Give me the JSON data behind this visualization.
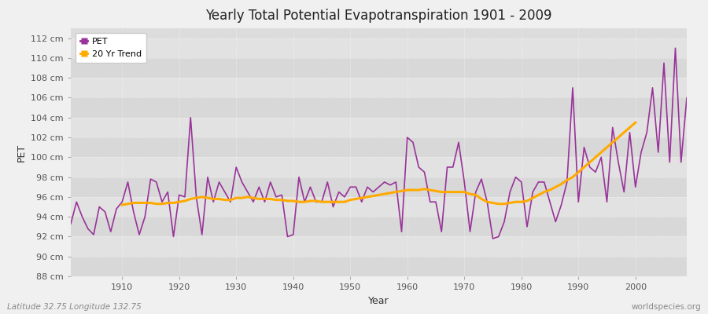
{
  "title": "Yearly Total Potential Evapotranspiration 1901 - 2009",
  "xlabel": "Year",
  "ylabel": "PET",
  "subtitle_left": "Latitude 32.75 Longitude 132.75",
  "subtitle_right": "worldspecies.org",
  "pet_color": "#993399",
  "trend_color": "#ffaa00",
  "background_color": "#f0f0f0",
  "plot_bg_color": "#e8e8e8",
  "band_colors": [
    "#e0e0e0",
    "#d8d8d8"
  ],
  "ylim": [
    88,
    113
  ],
  "xlim": [
    1901,
    2009
  ],
  "yticks": [
    88,
    90,
    92,
    94,
    96,
    98,
    100,
    102,
    104,
    106,
    108,
    110,
    112
  ],
  "xticks": [
    1910,
    1920,
    1930,
    1940,
    1950,
    1960,
    1970,
    1980,
    1990,
    2000
  ],
  "years": [
    1901,
    1902,
    1903,
    1904,
    1905,
    1906,
    1907,
    1908,
    1909,
    1910,
    1911,
    1912,
    1913,
    1914,
    1915,
    1916,
    1917,
    1918,
    1919,
    1920,
    1921,
    1922,
    1923,
    1924,
    1925,
    1926,
    1927,
    1928,
    1929,
    1930,
    1931,
    1932,
    1933,
    1934,
    1935,
    1936,
    1937,
    1938,
    1939,
    1940,
    1941,
    1942,
    1943,
    1944,
    1945,
    1946,
    1947,
    1948,
    1949,
    1950,
    1951,
    1952,
    1953,
    1954,
    1955,
    1956,
    1957,
    1958,
    1959,
    1960,
    1961,
    1962,
    1963,
    1964,
    1965,
    1966,
    1967,
    1968,
    1969,
    1970,
    1971,
    1972,
    1973,
    1974,
    1975,
    1976,
    1977,
    1978,
    1979,
    1980,
    1981,
    1982,
    1983,
    1984,
    1985,
    1986,
    1987,
    1988,
    1989,
    1990,
    1991,
    1992,
    1993,
    1994,
    1995,
    1996,
    1997,
    1998,
    1999,
    2000,
    2001,
    2002,
    2003,
    2004,
    2005,
    2006,
    2007,
    2008,
    2009
  ],
  "pet_values": [
    93.3,
    95.5,
    94.0,
    92.8,
    92.2,
    95.0,
    94.5,
    92.5,
    94.8,
    95.5,
    97.5,
    94.5,
    92.2,
    94.0,
    97.8,
    97.5,
    95.5,
    96.5,
    92.0,
    96.2,
    96.0,
    104.0,
    96.0,
    92.2,
    98.0,
    95.5,
    97.5,
    96.5,
    95.5,
    99.0,
    97.5,
    96.5,
    95.5,
    97.0,
    95.5,
    97.5,
    96.0,
    96.2,
    92.0,
    92.2,
    98.0,
    95.5,
    97.0,
    95.5,
    95.5,
    97.5,
    95.0,
    96.5,
    96.0,
    97.0,
    97.0,
    95.5,
    97.0,
    96.5,
    97.0,
    97.5,
    97.2,
    97.5,
    92.5,
    102.0,
    101.5,
    99.0,
    98.5,
    95.5,
    95.5,
    92.5,
    99.0,
    99.0,
    101.5,
    97.5,
    92.5,
    96.5,
    97.8,
    95.5,
    91.8,
    92.0,
    93.5,
    96.5,
    98.0,
    97.5,
    93.0,
    96.5,
    97.5,
    97.5,
    95.5,
    93.5,
    95.2,
    97.5,
    107.0,
    95.5,
    101.0,
    99.0,
    98.5,
    100.0,
    95.5,
    103.0,
    99.5,
    96.5,
    102.5,
    97.0,
    100.5,
    102.5,
    107.0,
    100.5,
    109.5,
    99.5,
    111.0,
    99.5,
    106.0
  ],
  "trend_values": [
    null,
    null,
    null,
    null,
    null,
    null,
    null,
    null,
    null,
    95.2,
    95.3,
    95.4,
    95.4,
    95.4,
    95.4,
    95.3,
    95.3,
    95.4,
    95.4,
    95.5,
    95.6,
    95.8,
    95.9,
    96.0,
    95.9,
    95.8,
    95.8,
    95.7,
    95.7,
    95.9,
    95.9,
    96.0,
    95.9,
    95.8,
    95.8,
    95.8,
    95.7,
    95.7,
    95.6,
    95.6,
    95.5,
    95.5,
    95.6,
    95.6,
    95.5,
    95.5,
    95.5,
    95.5,
    95.5,
    95.7,
    95.8,
    95.9,
    96.0,
    96.1,
    96.2,
    96.3,
    96.4,
    96.5,
    96.6,
    96.7,
    96.7,
    96.7,
    96.8,
    96.7,
    96.6,
    96.5,
    96.5,
    96.5,
    96.5,
    96.5,
    96.3,
    96.2,
    95.8,
    95.5,
    95.4,
    95.3,
    95.3,
    95.4,
    95.5,
    95.5,
    95.6,
    95.9,
    96.2,
    96.5,
    96.7,
    97.0,
    97.3,
    97.7,
    98.0,
    98.5,
    99.0,
    99.5,
    100.0,
    100.5,
    101.0,
    101.5,
    102.0,
    102.5,
    103.0,
    103.5,
    null,
    null,
    null,
    null,
    null,
    null,
    null,
    null,
    null
  ]
}
